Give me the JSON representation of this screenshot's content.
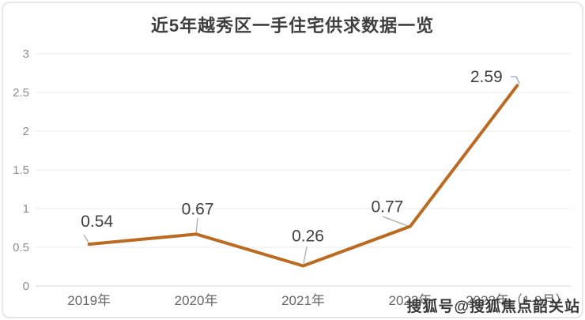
{
  "chart_data": {
    "type": "line",
    "title": "近5年越秀区一手住宅供求数据一览",
    "categories": [
      "2019年",
      "2020年",
      "2021年",
      "2022年",
      "2023年（1-9月）"
    ],
    "values": [
      0.54,
      0.67,
      0.26,
      0.77,
      2.59
    ],
    "value_labels": [
      "0.54",
      "0.67",
      "0.26",
      "0.77",
      "2.59"
    ],
    "yticks": [
      0,
      0.5,
      1,
      1.5,
      2,
      2.5,
      3
    ],
    "ytick_labels": [
      "0",
      "0.5",
      "1",
      "1.5",
      "2",
      "2.5",
      "3"
    ],
    "ylim": [
      0,
      3
    ],
    "xlabel": "",
    "ylabel": "",
    "grid": "horizontal",
    "legend": "none",
    "colors": {
      "line": "#bc6a20",
      "data_label": "#404040",
      "title": "#3f3f3f",
      "y_tick_text": "#8c8c8c",
      "x_tick_text": "#666666",
      "gridline": "#eaeaea",
      "axis_line": "#d8d8d8",
      "leader_line": "#adadad",
      "leader_line_last": "#8fa3c8"
    }
  },
  "watermark": {
    "text": "搜狐号@搜狐焦点韶关站"
  }
}
